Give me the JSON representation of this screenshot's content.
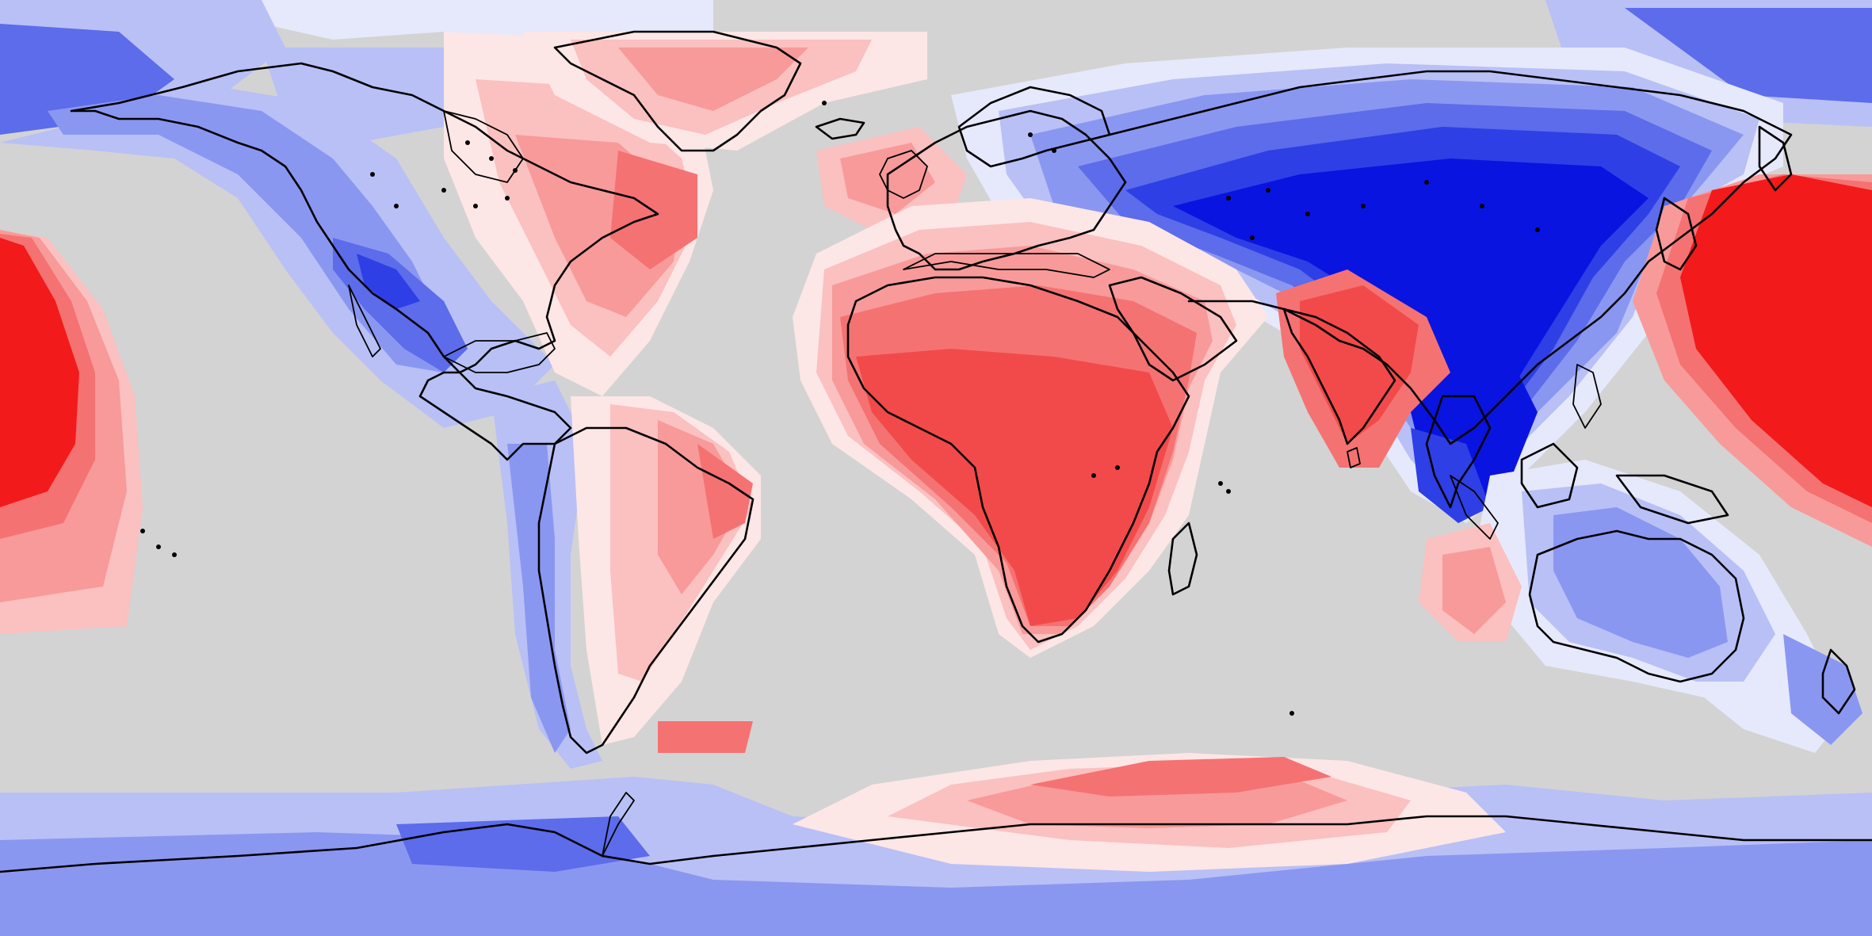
{
  "map": {
    "projection": "equirectangular",
    "background_color": "#d3d3d3",
    "coastline_color": "#000000",
    "palette": {
      "blue_1": "#e6e9fb",
      "blue_2": "#b8c0f6",
      "blue_3": "#8a97f1",
      "blue_4": "#5c6cea",
      "blue_5": "#2e3fe6",
      "blue_6": "#0a14e0",
      "red_1": "#fde6e6",
      "red_2": "#fbc0c0",
      "red_3": "#f89a9a",
      "red_4": "#f57272",
      "red_5": "#f24a4a",
      "red_6": "#f21a1a"
    },
    "anomaly_regions": [
      {
        "name": "north-america-northwest",
        "sign": "negative"
      },
      {
        "name": "western-us-center",
        "sign": "negative"
      },
      {
        "name": "eastern-canada-atlantic",
        "sign": "positive"
      },
      {
        "name": "greenland",
        "sign": "positive"
      },
      {
        "name": "north-atlantic-europe",
        "sign": "positive"
      },
      {
        "name": "africa-arabia",
        "sign": "positive"
      },
      {
        "name": "india",
        "sign": "positive"
      },
      {
        "name": "siberia-china-southeast-asia",
        "sign": "negative"
      },
      {
        "name": "northwest-pacific",
        "sign": "positive"
      },
      {
        "name": "central-pacific",
        "sign": "positive"
      },
      {
        "name": "south-america",
        "sign": "mixed"
      },
      {
        "name": "australia",
        "sign": "negative"
      },
      {
        "name": "antarctica",
        "sign": "mixed"
      }
    ]
  }
}
